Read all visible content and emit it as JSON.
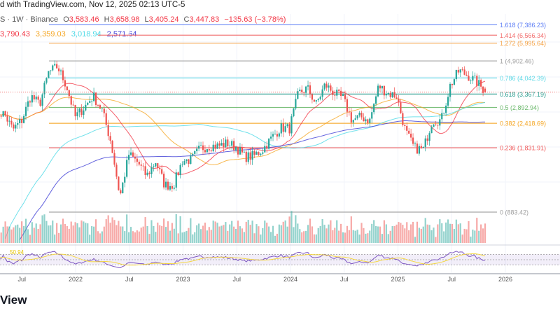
{
  "header": {
    "published": "d with TradingView.com, Nov 12, 2025 02:13 UTC-5",
    "symbol_info": "S · 1W · Binance",
    "ohlc": {
      "o_label": "O",
      "o": "3,583.46",
      "h_label": "H",
      "h": "3,658.98",
      "l_label": "L",
      "l": "3,405.24",
      "c_label": "C",
      "c": "3,447.83",
      "change": "−135.63 (−3.78%)"
    },
    "ma_values": [
      {
        "value": "3,790.43",
        "color": "#f23645"
      },
      {
        "value": "3,359.03",
        "color": "#f5a623"
      },
      {
        "value": "3,018.94",
        "color": "#4dd9e6"
      },
      {
        "value": "2,571.64",
        "color": "#3d3dd6"
      }
    ]
  },
  "brand_text": "View",
  "chart_data": {
    "type": "candlestick",
    "interval": "1W",
    "exchange": "Binance",
    "y_scale": "log",
    "grid": true,
    "x_ticks": [
      {
        "label": "Jul",
        "t": 2021.5
      },
      {
        "label": "2022",
        "t": 2022.0
      },
      {
        "label": "Jul",
        "t": 2022.5
      },
      {
        "label": "2023",
        "t": 2023.0
      },
      {
        "label": "Jul",
        "t": 2023.5
      },
      {
        "label": "2024",
        "t": 2024.0
      },
      {
        "label": "Jul",
        "t": 2024.5
      },
      {
        "label": "2025",
        "t": 2025.0
      },
      {
        "label": "Jul",
        "t": 2025.5
      },
      {
        "label": "2026",
        "t": 2026.0
      }
    ],
    "last_candle": {
      "open": 3583.46,
      "high": 3658.98,
      "low": 3405.24,
      "close": 3447.83
    },
    "fib_levels": [
      {
        "ratio": "1.618",
        "price": 7386.23,
        "label": "1.618 (7,386.23)",
        "color": "#5b7cf5"
      },
      {
        "ratio": "1.414",
        "price": 6566.34,
        "label": "1.414 (6,566.34)",
        "color": "#f26d6d"
      },
      {
        "ratio": "1.272",
        "price": 5995.64,
        "label": "1.272 (5,995.64)",
        "color": "#f5a142"
      },
      {
        "ratio": "1",
        "price": 4902.46,
        "label": "1 (4,902.46)",
        "color": "#9e9e9e"
      },
      {
        "ratio": "0.786",
        "price": 4042.39,
        "label": "0.786 (4,042.39)",
        "color": "#5fd9e6"
      },
      {
        "ratio": "0.618",
        "price": 3367.19,
        "label": "0.618 (3,367.19)",
        "color": "#2a9d8f"
      },
      {
        "ratio": "0.5",
        "price": 2892.94,
        "label": "0.5 (2,892.94)",
        "color": "#6fba6f"
      },
      {
        "ratio": "0.382",
        "price": 2418.69,
        "label": "0.382 (2,418.69)",
        "color": "#f5a623"
      },
      {
        "ratio": "0.236",
        "price": 1831.91,
        "label": "0.236 (1,831.91)",
        "color": "#f05a5a"
      },
      {
        "ratio": "0",
        "price": 883.42,
        "label": "0 (883.42)",
        "color": "#9e9e9e"
      }
    ],
    "monthly_close_approx": {
      "start": "2021-04",
      "values": [
        2700,
        2700,
        2250,
        2500,
        3300,
        3000,
        4300,
        4600,
        3700,
        2600,
        2900,
        3300,
        2800,
        1950,
        1050,
        1700,
        1550,
        1330,
        1570,
        1200,
        1200,
        1580,
        1600,
        1820,
        1870,
        1870,
        1930,
        1850,
        1650,
        1670,
        1800,
        2050,
        2300,
        2280,
        3400,
        3600,
        3000,
        3750,
        3400,
        3200,
        2500,
        2600,
        2500,
        3700,
        3400,
        3300,
        2200,
        1820,
        1800,
        2500,
        2500,
        3700,
        4400,
        4150,
        3850,
        3447.83
      ]
    },
    "moving_averages": [
      {
        "color": "#f23645",
        "last": 3790.43
      },
      {
        "color": "#f5a623",
        "last": 3359.03
      },
      {
        "color": "#4dd9e6",
        "last": 3018.94
      },
      {
        "color": "#3d3dd6",
        "last": 2571.64
      }
    ],
    "rsi": {
      "value_label": "50.94",
      "levels": [
        70,
        50,
        30
      ],
      "line_color": "#7e57c2",
      "ma_color": "#f5d742"
    },
    "colors": {
      "up": "#26a69a",
      "down": "#ef5350"
    }
  }
}
